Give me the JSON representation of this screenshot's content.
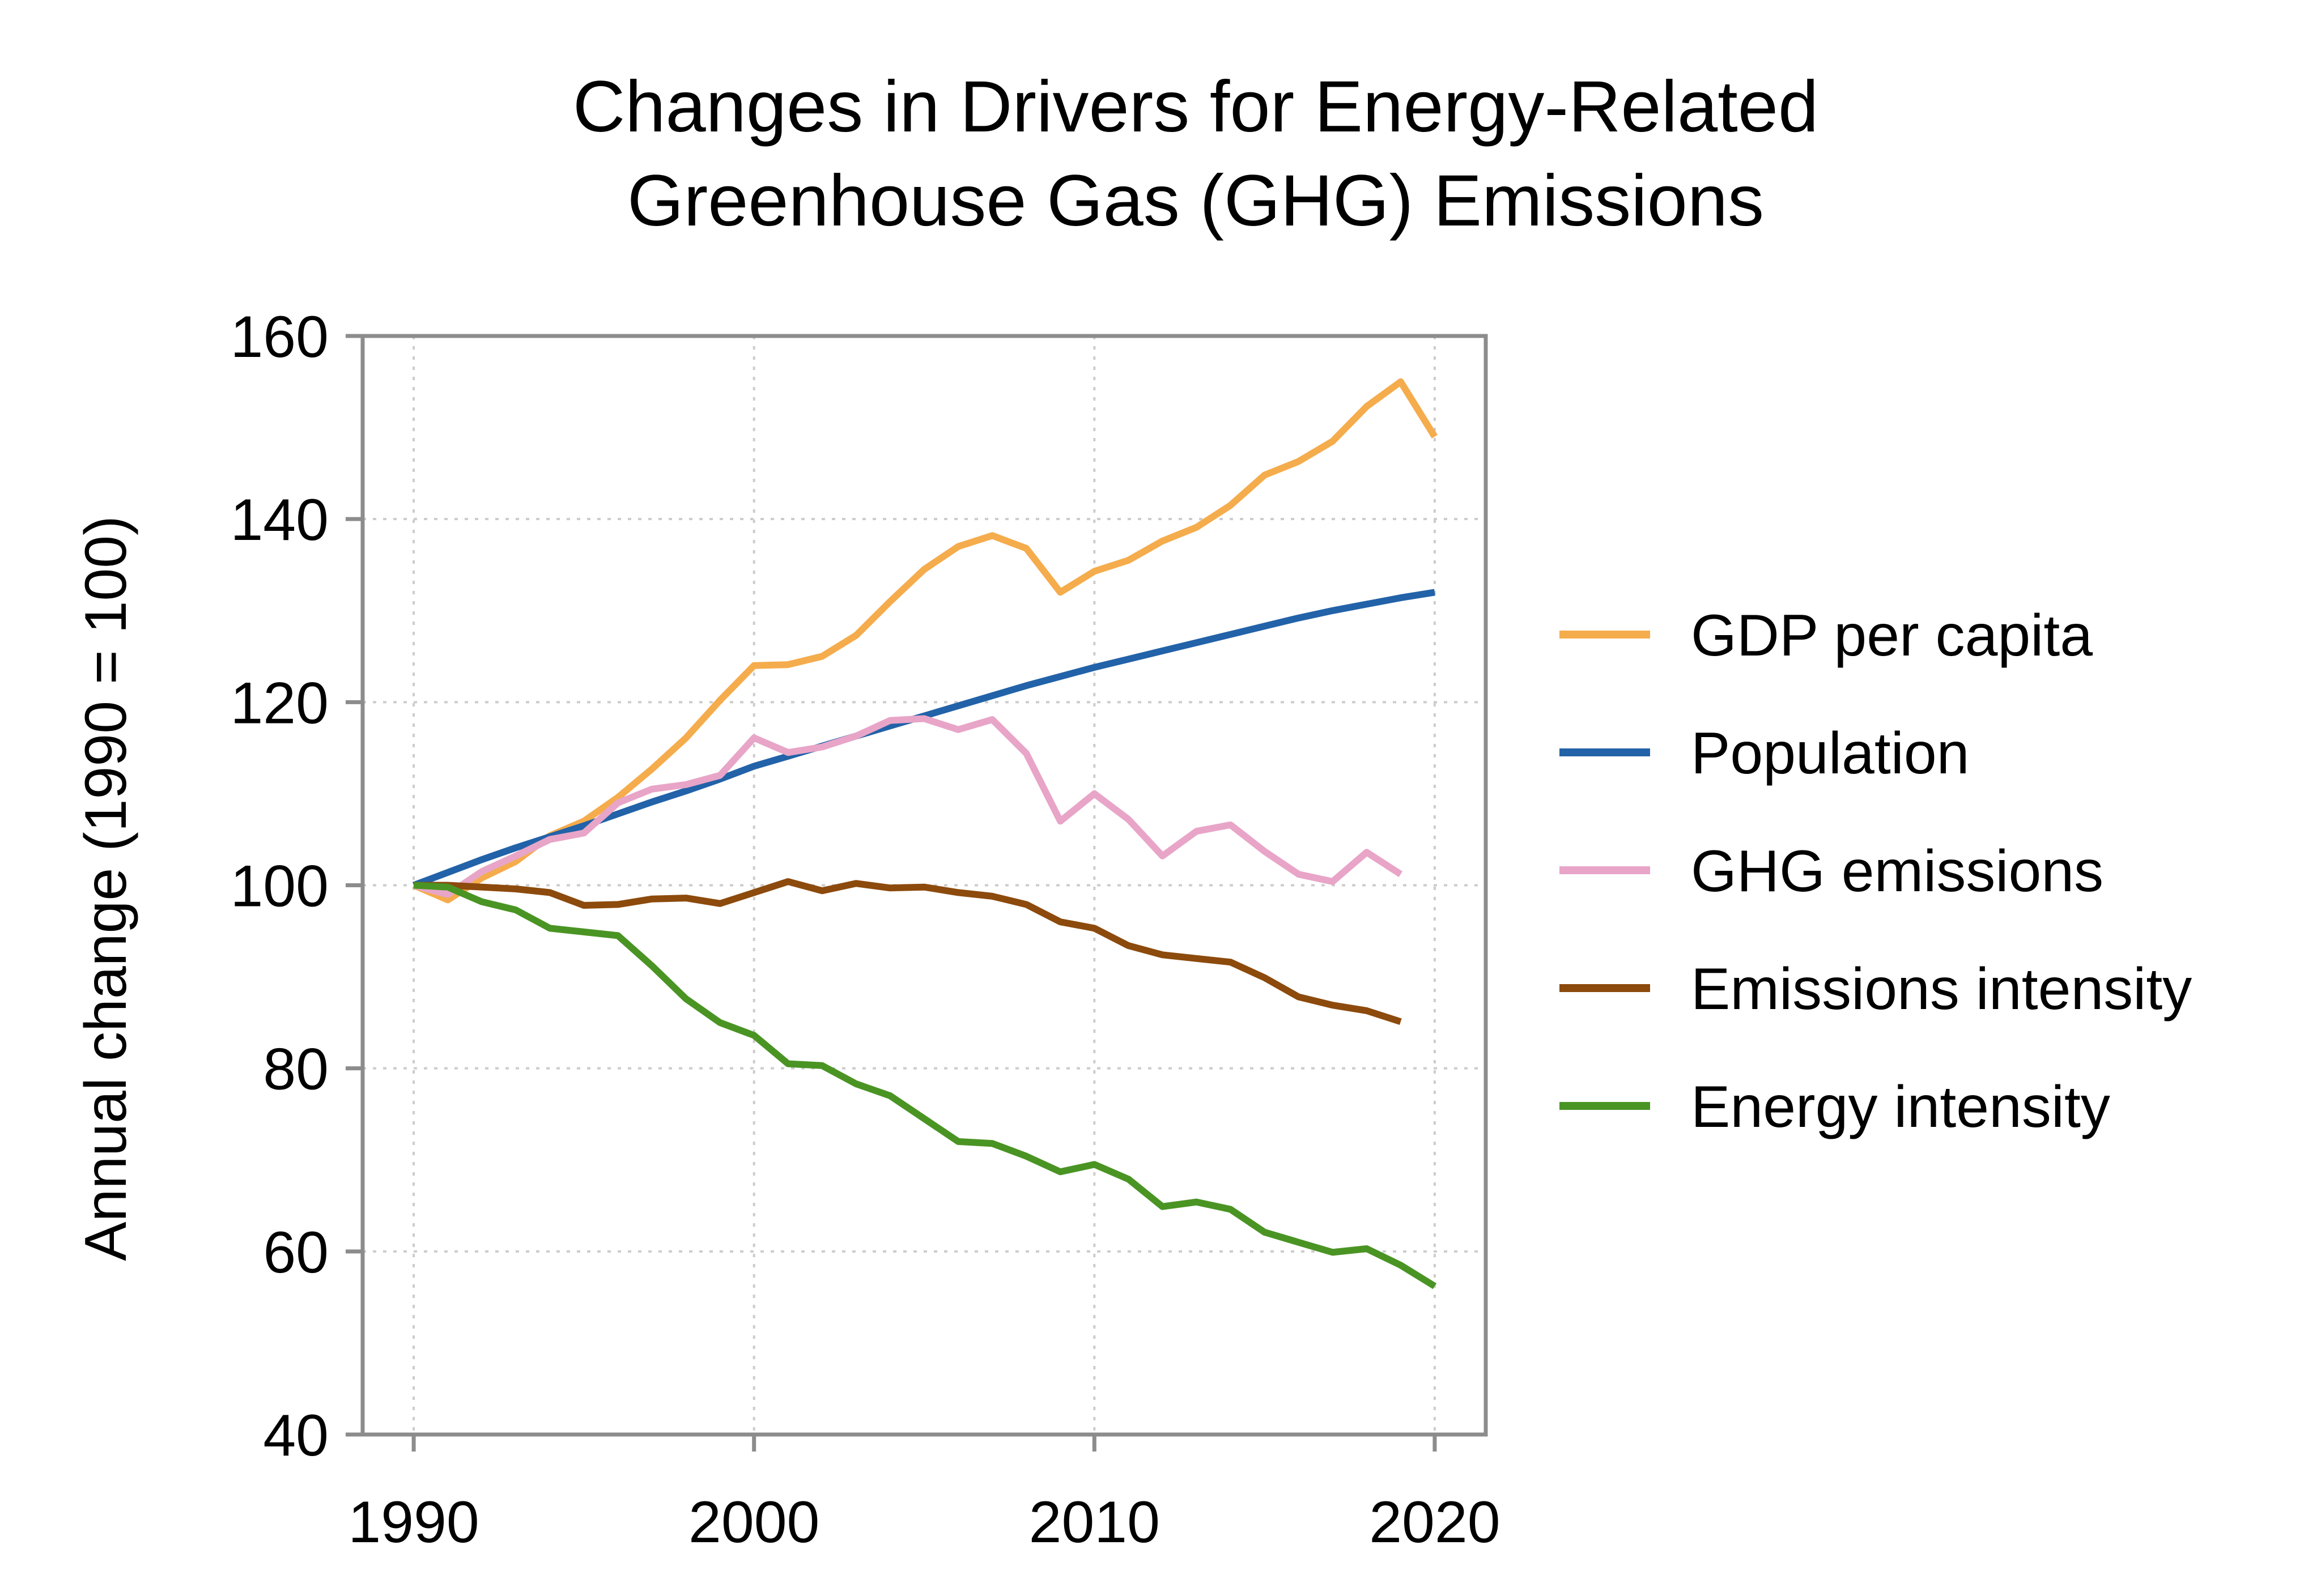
{
  "chart_data": {
    "type": "line",
    "title_lines": [
      "Changes in Drivers for Energy-Related",
      "Greenhouse Gas (GHG) Emissions"
    ],
    "xlabel": "",
    "ylabel": "Annual change (1990 = 100)",
    "xlim": [
      1988.5,
      2021.5
    ],
    "ylim": [
      40,
      160
    ],
    "xticks": [
      1990,
      2000,
      2010,
      2020
    ],
    "yticks": [
      40,
      60,
      80,
      100,
      120,
      140,
      160
    ],
    "grid": true,
    "legend_position": "right",
    "series": [
      {
        "name": "GDP per capita",
        "color": "#f5ac4c",
        "x": [
          1990,
          1991,
          1992,
          1993,
          1994,
          1995,
          1996,
          1997,
          1998,
          1999,
          2000,
          2001,
          2002,
          2003,
          2004,
          2005,
          2006,
          2007,
          2008,
          2009,
          2010,
          2011,
          2012,
          2013,
          2014,
          2015,
          2016,
          2017,
          2018,
          2019,
          2020
        ],
        "values": [
          100,
          98.4,
          100.8,
          102.6,
          105.4,
          107,
          109.6,
          112.7,
          116.1,
          120.2,
          124,
          124.1,
          125,
          127.3,
          131,
          134.5,
          137,
          138.2,
          136.8,
          132,
          134.3,
          135.5,
          137.6,
          139.1,
          141.5,
          144.8,
          146.3,
          148.5,
          152.3,
          155,
          149
        ]
      },
      {
        "name": "Population",
        "color": "#2262a8",
        "x": [
          1990,
          1991,
          1992,
          1993,
          1994,
          1995,
          1996,
          1997,
          1998,
          1999,
          2000,
          2001,
          2002,
          2003,
          2004,
          2005,
          2006,
          2007,
          2008,
          2009,
          2010,
          2011,
          2012,
          2013,
          2014,
          2015,
          2016,
          2017,
          2018,
          2019,
          2020
        ],
        "values": [
          100,
          101.4,
          102.8,
          104.1,
          105.3,
          106.5,
          107.8,
          109.1,
          110.3,
          111.6,
          113,
          114.1,
          115.2,
          116.3,
          117.4,
          118.5,
          119.6,
          120.7,
          121.8,
          122.8,
          123.8,
          124.7,
          125.6,
          126.5,
          127.4,
          128.3,
          129.2,
          130,
          130.7,
          131.4,
          132
        ]
      },
      {
        "name": "GHG emissions",
        "color": "#e8a5c8",
        "x": [
          1990,
          1991,
          1992,
          1993,
          1994,
          1995,
          1996,
          1997,
          1998,
          1999,
          2000,
          2001,
          2002,
          2003,
          2004,
          2005,
          2006,
          2007,
          2008,
          2009,
          2010,
          2011,
          2012,
          2013,
          2014,
          2015,
          2016,
          2017,
          2018,
          2019
        ],
        "values": [
          100,
          99,
          101.5,
          103.2,
          105,
          105.7,
          109,
          110.5,
          111,
          112,
          116.1,
          114.5,
          115.1,
          116.3,
          118,
          118.2,
          117,
          118.1,
          114.4,
          107,
          110,
          107.2,
          103.2,
          105.9,
          106.6,
          103.7,
          101.2,
          100.4,
          103.6,
          101.2
        ]
      },
      {
        "name": "Emissions intensity",
        "color": "#8c4a0c",
        "x": [
          1990,
          1991,
          1992,
          1993,
          1994,
          1995,
          1996,
          1997,
          1998,
          1999,
          2000,
          2001,
          2002,
          2003,
          2004,
          2005,
          2006,
          2007,
          2008,
          2009,
          2010,
          2011,
          2012,
          2013,
          2014,
          2015,
          2016,
          2017,
          2018,
          2019
        ],
        "values": [
          100,
          100,
          99.8,
          99.6,
          99.2,
          97.8,
          97.9,
          98.5,
          98.6,
          98,
          99.2,
          100.4,
          99.4,
          100.2,
          99.7,
          99.8,
          99.2,
          98.8,
          97.9,
          96,
          95.3,
          93.4,
          92.4,
          92,
          91.6,
          89.9,
          87.8,
          86.9,
          86.3,
          85.1
        ]
      },
      {
        "name": "Energy intensity",
        "color": "#4a9424",
        "x": [
          1990,
          1991,
          1992,
          1993,
          1994,
          1995,
          1996,
          1997,
          1998,
          1999,
          2000,
          2001,
          2002,
          2003,
          2004,
          2005,
          2006,
          2007,
          2008,
          2009,
          2010,
          2011,
          2012,
          2013,
          2014,
          2015,
          2016,
          2017,
          2018,
          2019,
          2020
        ],
        "values": [
          100,
          99.8,
          98.2,
          97.3,
          95.3,
          94.9,
          94.5,
          91.2,
          87.6,
          85,
          83.6,
          80.5,
          80.3,
          78.3,
          77,
          74.5,
          72,
          71.8,
          70.4,
          68.7,
          69.5,
          67.9,
          64.9,
          65.4,
          64.6,
          62.1,
          61,
          59.9,
          60.3,
          58.5,
          56.2
        ]
      }
    ]
  }
}
